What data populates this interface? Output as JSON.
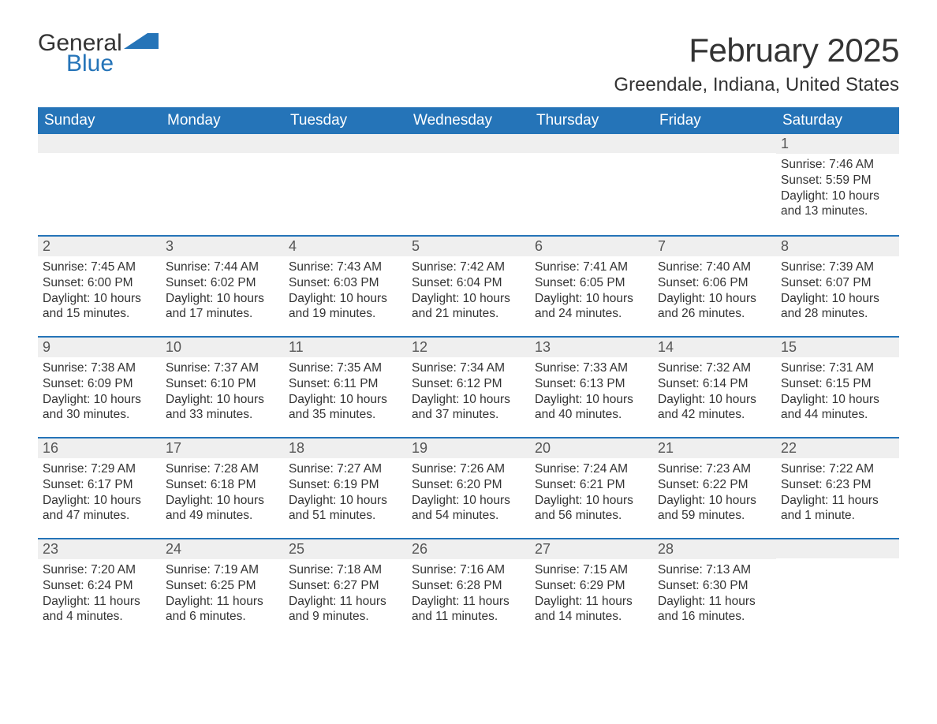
{
  "logo": {
    "word1": "General",
    "word2": "Blue",
    "accent_color": "#2574b8"
  },
  "title": "February 2025",
  "location": "Greendale, Indiana, United States",
  "header_bg": "#2574b8",
  "header_fg": "#ffffff",
  "daynum_bg": "#efefef",
  "row_border": "#2574b8",
  "weekdays": [
    "Sunday",
    "Monday",
    "Tuesday",
    "Wednesday",
    "Thursday",
    "Friday",
    "Saturday"
  ],
  "labels": {
    "sunrise": "Sunrise: ",
    "sunset": "Sunset: ",
    "daylight": "Daylight: "
  },
  "weeks": [
    [
      null,
      null,
      null,
      null,
      null,
      null,
      {
        "n": "1",
        "sr": "7:46 AM",
        "ss": "5:59 PM",
        "dl": "10 hours and 13 minutes."
      }
    ],
    [
      {
        "n": "2",
        "sr": "7:45 AM",
        "ss": "6:00 PM",
        "dl": "10 hours and 15 minutes."
      },
      {
        "n": "3",
        "sr": "7:44 AM",
        "ss": "6:02 PM",
        "dl": "10 hours and 17 minutes."
      },
      {
        "n": "4",
        "sr": "7:43 AM",
        "ss": "6:03 PM",
        "dl": "10 hours and 19 minutes."
      },
      {
        "n": "5",
        "sr": "7:42 AM",
        "ss": "6:04 PM",
        "dl": "10 hours and 21 minutes."
      },
      {
        "n": "6",
        "sr": "7:41 AM",
        "ss": "6:05 PM",
        "dl": "10 hours and 24 minutes."
      },
      {
        "n": "7",
        "sr": "7:40 AM",
        "ss": "6:06 PM",
        "dl": "10 hours and 26 minutes."
      },
      {
        "n": "8",
        "sr": "7:39 AM",
        "ss": "6:07 PM",
        "dl": "10 hours and 28 minutes."
      }
    ],
    [
      {
        "n": "9",
        "sr": "7:38 AM",
        "ss": "6:09 PM",
        "dl": "10 hours and 30 minutes."
      },
      {
        "n": "10",
        "sr": "7:37 AM",
        "ss": "6:10 PM",
        "dl": "10 hours and 33 minutes."
      },
      {
        "n": "11",
        "sr": "7:35 AM",
        "ss": "6:11 PM",
        "dl": "10 hours and 35 minutes."
      },
      {
        "n": "12",
        "sr": "7:34 AM",
        "ss": "6:12 PM",
        "dl": "10 hours and 37 minutes."
      },
      {
        "n": "13",
        "sr": "7:33 AM",
        "ss": "6:13 PM",
        "dl": "10 hours and 40 minutes."
      },
      {
        "n": "14",
        "sr": "7:32 AM",
        "ss": "6:14 PM",
        "dl": "10 hours and 42 minutes."
      },
      {
        "n": "15",
        "sr": "7:31 AM",
        "ss": "6:15 PM",
        "dl": "10 hours and 44 minutes."
      }
    ],
    [
      {
        "n": "16",
        "sr": "7:29 AM",
        "ss": "6:17 PM",
        "dl": "10 hours and 47 minutes."
      },
      {
        "n": "17",
        "sr": "7:28 AM",
        "ss": "6:18 PM",
        "dl": "10 hours and 49 minutes."
      },
      {
        "n": "18",
        "sr": "7:27 AM",
        "ss": "6:19 PM",
        "dl": "10 hours and 51 minutes."
      },
      {
        "n": "19",
        "sr": "7:26 AM",
        "ss": "6:20 PM",
        "dl": "10 hours and 54 minutes."
      },
      {
        "n": "20",
        "sr": "7:24 AM",
        "ss": "6:21 PM",
        "dl": "10 hours and 56 minutes."
      },
      {
        "n": "21",
        "sr": "7:23 AM",
        "ss": "6:22 PM",
        "dl": "10 hours and 59 minutes."
      },
      {
        "n": "22",
        "sr": "7:22 AM",
        "ss": "6:23 PM",
        "dl": "11 hours and 1 minute."
      }
    ],
    [
      {
        "n": "23",
        "sr": "7:20 AM",
        "ss": "6:24 PM",
        "dl": "11 hours and 4 minutes."
      },
      {
        "n": "24",
        "sr": "7:19 AM",
        "ss": "6:25 PM",
        "dl": "11 hours and 6 minutes."
      },
      {
        "n": "25",
        "sr": "7:18 AM",
        "ss": "6:27 PM",
        "dl": "11 hours and 9 minutes."
      },
      {
        "n": "26",
        "sr": "7:16 AM",
        "ss": "6:28 PM",
        "dl": "11 hours and 11 minutes."
      },
      {
        "n": "27",
        "sr": "7:15 AM",
        "ss": "6:29 PM",
        "dl": "11 hours and 14 minutes."
      },
      {
        "n": "28",
        "sr": "7:13 AM",
        "ss": "6:30 PM",
        "dl": "11 hours and 16 minutes."
      },
      null
    ]
  ]
}
